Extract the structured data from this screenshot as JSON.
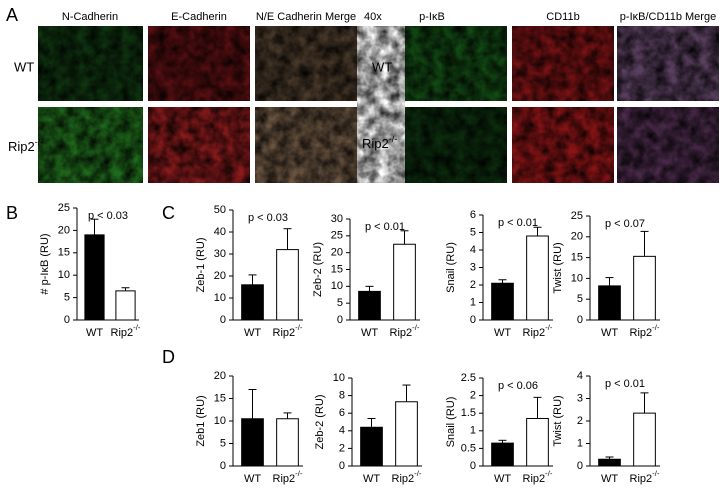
{
  "panels": [
    "A",
    "B",
    "C",
    "D"
  ],
  "image_panel": {
    "left_columns": [
      "N-Cadherin",
      "E-Cadherin",
      "N/E Cadherin Merge"
    ],
    "right_columns": [
      "p-IκB",
      "CD11b",
      "p-IκB/CD11b Merge"
    ],
    "magnification": "40x",
    "rows": [
      "WT",
      "Rip2-/-"
    ]
  },
  "chart_data": [
    {
      "type": "bar",
      "ylabel": "# p-IκB (RU)",
      "annotation": "p < 0.03",
      "categories": [
        "WT",
        "Rip2-/-"
      ],
      "values": [
        19,
        6.5
      ],
      "errors": [
        3.5,
        0.7
      ],
      "colors": [
        "#000000",
        "#ffffff"
      ],
      "ylim": [
        0,
        25
      ],
      "yticks": [
        0,
        5,
        10,
        15,
        20,
        25
      ]
    },
    {
      "type": "bar",
      "ylabel": "Zeb-1 (RU)",
      "annotation": "p < 0.03",
      "categories": [
        "WT",
        "Rip2-/-"
      ],
      "values": [
        16,
        32
      ],
      "errors": [
        4.5,
        9.5
      ],
      "colors": [
        "#000000",
        "#ffffff"
      ],
      "ylim": [
        0,
        50
      ],
      "yticks": [
        0,
        10,
        20,
        30,
        40,
        50
      ]
    },
    {
      "type": "bar",
      "ylabel": "Zeb-2 (RU)",
      "annotation": "p < 0.01",
      "categories": [
        "WT",
        "Rip2-/-"
      ],
      "values": [
        8.5,
        22.5
      ],
      "errors": [
        1.5,
        4
      ],
      "colors": [
        "#000000",
        "#ffffff"
      ],
      "ylim": [
        0,
        30
      ],
      "yticks": [
        0,
        5,
        10,
        15,
        20,
        25,
        30
      ]
    },
    {
      "type": "bar",
      "ylabel": "Snail (RU)",
      "annotation": "p < 0.01",
      "categories": [
        "WT",
        "Rip2-/-"
      ],
      "values": [
        2.1,
        4.8
      ],
      "errors": [
        0.2,
        0.5
      ],
      "colors": [
        "#000000",
        "#ffffff"
      ],
      "ylim": [
        0,
        6
      ],
      "yticks": [
        0,
        1,
        2,
        3,
        4,
        5,
        6
      ]
    },
    {
      "type": "bar",
      "ylabel": "Twist (RU)",
      "annotation": "p < 0.07",
      "categories": [
        "WT",
        "Rip2-/-"
      ],
      "values": [
        8.2,
        15.3
      ],
      "errors": [
        2,
        6
      ],
      "colors": [
        "#000000",
        "#ffffff"
      ],
      "ylim": [
        0,
        25
      ],
      "yticks": [
        0,
        5,
        10,
        15,
        20,
        25
      ]
    },
    {
      "type": "bar",
      "ylabel": "Zeb1 (RU)",
      "categories": [
        "WT",
        "Rip2-/-"
      ],
      "values": [
        10.5,
        10.5
      ],
      "errors": [
        6.5,
        1.3
      ],
      "colors": [
        "#000000",
        "#ffffff"
      ],
      "ylim": [
        0,
        20
      ],
      "yticks": [
        0,
        5,
        10,
        15,
        20
      ]
    },
    {
      "type": "bar",
      "ylabel": "Zeb-2 (RU)",
      "categories": [
        "WT",
        "Rip2-/-"
      ],
      "values": [
        4.4,
        7.3
      ],
      "errors": [
        1,
        1.9
      ],
      "colors": [
        "#000000",
        "#ffffff"
      ],
      "ylim": [
        0,
        10
      ],
      "yticks": [
        0,
        2,
        4,
        6,
        8,
        10
      ]
    },
    {
      "type": "bar",
      "ylabel": "Snail (RU)",
      "annotation": "p < 0.06",
      "categories": [
        "WT",
        "Rip2-/-"
      ],
      "values": [
        0.65,
        1.35
      ],
      "errors": [
        0.08,
        0.6
      ],
      "colors": [
        "#000000",
        "#ffffff"
      ],
      "ylim": [
        0,
        2.5
      ],
      "yticks": [
        0,
        0.5,
        1,
        1.5,
        2,
        2.5
      ]
    },
    {
      "type": "bar",
      "ylabel": "Twist (RU)",
      "annotation": "p < 0.01",
      "categories": [
        "WT",
        "Rip2-/-"
      ],
      "values": [
        0.3,
        2.35
      ],
      "errors": [
        0.1,
        0.9
      ],
      "colors": [
        "#000000",
        "#ffffff"
      ],
      "ylim": [
        0,
        4
      ],
      "yticks": [
        0,
        1,
        2,
        3,
        4
      ]
    }
  ]
}
